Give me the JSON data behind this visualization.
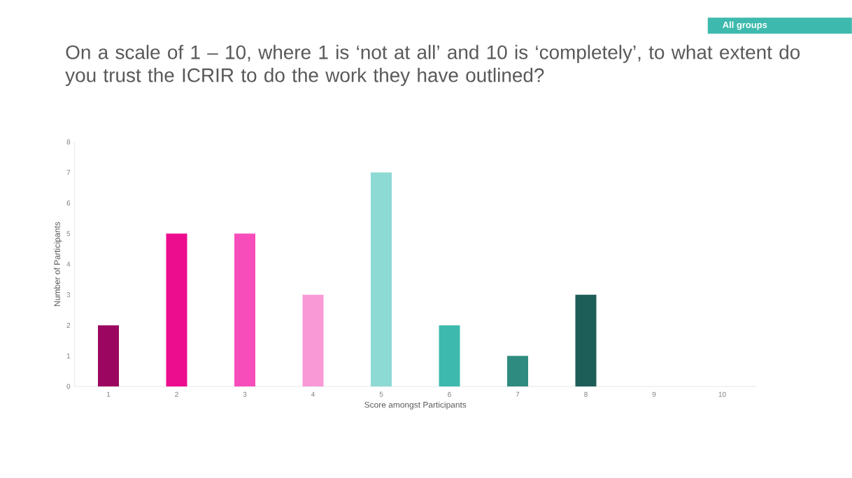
{
  "chart_data": {
    "type": "bar",
    "title": "On a scale of 1 – 10, where 1 is ‘not at all’ and 10 is ‘completely’, to what extent do you trust the ICRIR to do the work they have outlined?",
    "annotations": [
      "All groups"
    ],
    "xlabel": "Score amongst Participants",
    "ylabel": "Number of Participants",
    "categories": [
      "1",
      "2",
      "3",
      "4",
      "5",
      "6",
      "7",
      "8",
      "9",
      "10"
    ],
    "values": [
      2,
      5,
      5,
      3,
      7,
      2,
      1,
      3,
      0,
      0
    ],
    "colors": [
      "#9b0760",
      "#ec0c8e",
      "#f74dba",
      "#f99ad6",
      "#8dd9d3",
      "#3dbaad",
      "#2e8b80",
      "#1e5e58",
      "#1e5e58",
      "#1e5e58"
    ],
    "ylim": [
      0,
      8
    ],
    "yticks": [
      0,
      1,
      2,
      3,
      4,
      5,
      6,
      7,
      8
    ]
  }
}
